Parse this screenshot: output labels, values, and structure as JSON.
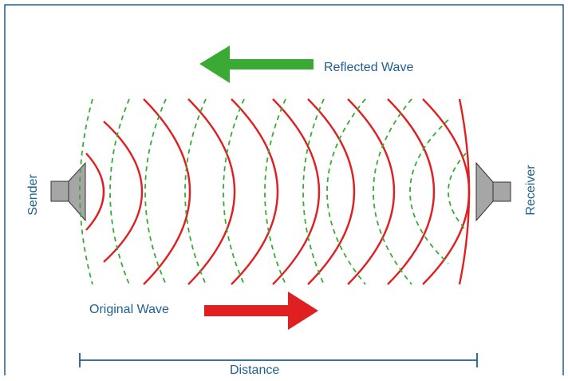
{
  "labels": {
    "reflected_wave": "Reflected Wave",
    "original_wave": "Original Wave",
    "sender": "Sender",
    "receiver": "Receiver",
    "distance": "Distance"
  },
  "colors": {
    "frame_border": "#1f5f8f",
    "text": "#1f5f8f",
    "original_wave": "#e02020",
    "reflected_wave": "#3aaa35",
    "speaker_fill": "#a6a6a6",
    "speaker_stroke": "#333333",
    "distance_line": "#1f5f8f"
  },
  "icons": {
    "sender": "speaker-icon",
    "receiver": "speaker-icon",
    "original_arrow": "arrow-right-icon",
    "reflected_arrow": "arrow-left-icon"
  }
}
